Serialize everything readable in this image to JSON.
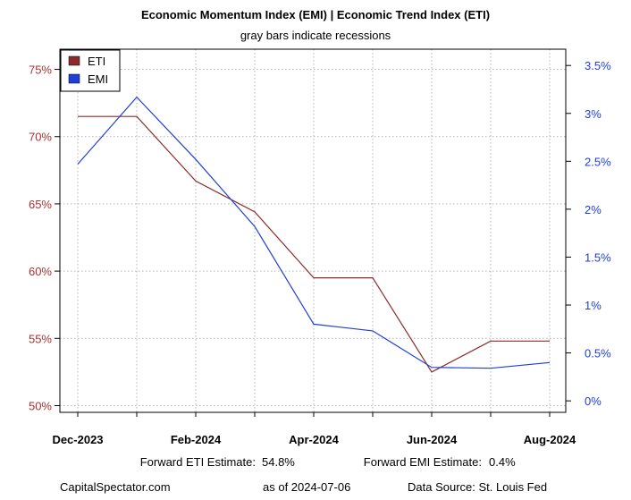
{
  "chart_data": {
    "type": "line",
    "title": "Economic Momentum Index (EMI) | Economic Trend Index (ETI)",
    "subtitle": "gray bars indicate recessions",
    "x": [
      "2023-12",
      "2024-01",
      "2024-02",
      "2024-03",
      "2024-04",
      "2024-05",
      "2024-06",
      "2024-07",
      "2024-08"
    ],
    "x_tick_labels": [
      "Dec-2023",
      "Feb-2024",
      "Apr-2024",
      "Jun-2024",
      "Aug-2024"
    ],
    "x_tick_positions": [
      "2023-12",
      "2024-02",
      "2024-04",
      "2024-06",
      "2024-08"
    ],
    "series": [
      {
        "name": "ETI",
        "axis": "left",
        "color": "#8b2b2b",
        "values": [
          71.5,
          71.5,
          66.7,
          64.4,
          59.5,
          59.5,
          52.5,
          54.8,
          54.8
        ]
      },
      {
        "name": "EMI",
        "axis": "right",
        "color": "#1f3fd6",
        "values": [
          2.47,
          3.17,
          2.52,
          1.82,
          0.8,
          0.73,
          0.35,
          0.34,
          0.4
        ]
      }
    ],
    "y_left": {
      "ylim": [
        49.5,
        76.5
      ],
      "ticks": [
        50,
        55,
        60,
        65,
        70,
        75
      ],
      "tick_labels": [
        "50%",
        "55%",
        "60%",
        "65%",
        "70%",
        "75%"
      ]
    },
    "y_right": {
      "ylim": [
        -0.12,
        3.67
      ],
      "ticks": [
        0,
        0.5,
        1,
        1.5,
        2,
        2.5,
        3,
        3.5
      ],
      "tick_labels": [
        "0%",
        "0.5%",
        "1%",
        "1.5%",
        "2%",
        "2.5%",
        "3%",
        "3.5%"
      ]
    },
    "grid": true,
    "legend_position": "top-left"
  },
  "footer": {
    "eti_estimate_label": "Forward ETI Estimate:",
    "eti_estimate_value": "54.8%",
    "emi_estimate_label": "Forward EMI Estimate:",
    "emi_estimate_value": "0.4%",
    "source_site": "CapitalSpectator.com",
    "as_of": "as of 2024-07-06",
    "data_source": "Data Source: St. Louis Fed"
  }
}
